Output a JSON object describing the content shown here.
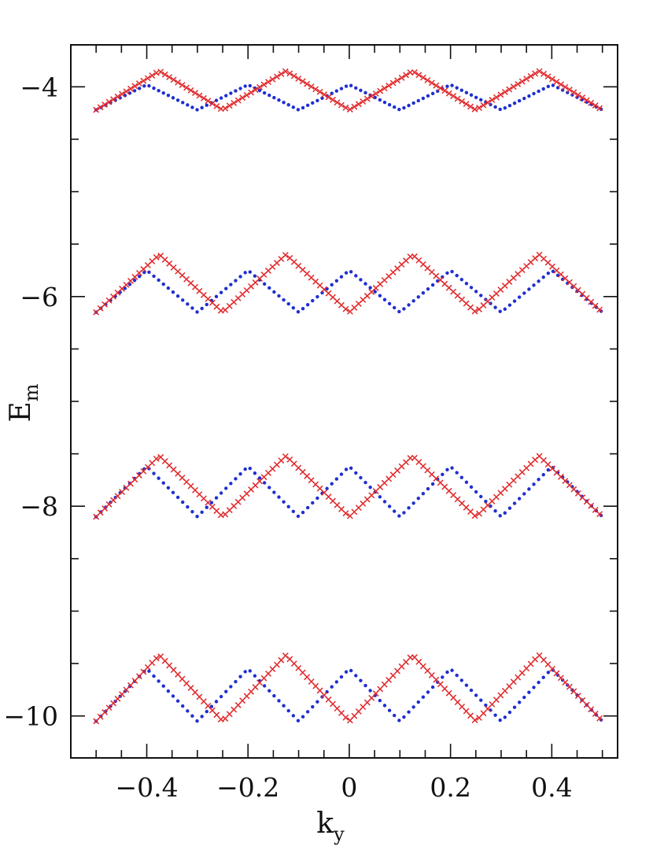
{
  "chart_data": {
    "type": "scatter",
    "title": "",
    "xlabel": "k",
    "xlabel_sub": "y",
    "ylabel": "E",
    "ylabel_sub": "m",
    "xlim": [
      -0.55,
      0.53
    ],
    "ylim": [
      -10.4,
      -3.6
    ],
    "x_ticks": [
      -0.4,
      -0.2,
      0,
      0.2,
      0.4
    ],
    "x_tick_labels": [
      "−0.4",
      "−0.2",
      "0",
      "0.2",
      "0.4"
    ],
    "x_minor_step": 0.05,
    "y_ticks": [
      -10,
      -8,
      -6,
      -4
    ],
    "y_tick_labels": [
      "−10",
      "−8",
      "−6",
      "−4"
    ],
    "y_minor_step": 0.5,
    "grid": false,
    "legend": "none",
    "colors": {
      "blue": "#1f2fd0",
      "red": "#e0282a"
    },
    "series": [
      {
        "marker": "dot",
        "color": "#1f2fd0",
        "bands": [
          {
            "k": [
              -0.5,
              -0.4,
              -0.3,
              -0.2,
              -0.1,
              0,
              0.1,
              0.2,
              0.3,
              0.4,
              0.5
            ],
            "E": [
              -4.22,
              -3.98,
              -4.22,
              -3.98,
              -4.22,
              -3.98,
              -4.22,
              -3.98,
              -4.22,
              -3.98,
              -4.22
            ]
          },
          {
            "k": [
              -0.5,
              -0.4,
              -0.3,
              -0.2,
              -0.1,
              0,
              0.1,
              0.2,
              0.3,
              0.4,
              0.5
            ],
            "E": [
              -6.15,
              -5.75,
              -6.15,
              -5.75,
              -6.15,
              -5.75,
              -6.15,
              -5.75,
              -6.15,
              -5.75,
              -6.15
            ]
          },
          {
            "k": [
              -0.5,
              -0.4,
              -0.3,
              -0.2,
              -0.1,
              0,
              0.1,
              0.2,
              0.3,
              0.4,
              0.5
            ],
            "E": [
              -8.1,
              -7.62,
              -8.1,
              -7.62,
              -8.1,
              -7.62,
              -8.1,
              -7.62,
              -8.1,
              -7.62,
              -8.1
            ]
          },
          {
            "k": [
              -0.5,
              -0.4,
              -0.3,
              -0.2,
              -0.1,
              0,
              0.1,
              0.2,
              0.3,
              0.4,
              0.5
            ],
            "E": [
              -10.05,
              -9.55,
              -10.05,
              -9.55,
              -10.05,
              -9.55,
              -10.05,
              -9.55,
              -10.05,
              -9.55,
              -10.05
            ]
          }
        ]
      },
      {
        "marker": "cross",
        "color": "#e0282a",
        "bands": [
          {
            "k": [
              -0.5,
              -0.375,
              -0.25,
              -0.125,
              0,
              0.125,
              0.25,
              0.375,
              0.5
            ],
            "E": [
              -4.22,
              -3.85,
              -4.22,
              -3.85,
              -4.22,
              -3.85,
              -4.22,
              -3.85,
              -4.22
            ]
          },
          {
            "k": [
              -0.5,
              -0.375,
              -0.25,
              -0.125,
              0,
              0.125,
              0.25,
              0.375,
              0.5
            ],
            "E": [
              -6.15,
              -5.6,
              -6.15,
              -5.6,
              -6.15,
              -5.6,
              -6.15,
              -5.6,
              -6.15
            ]
          },
          {
            "k": [
              -0.5,
              -0.375,
              -0.25,
              -0.125,
              0,
              0.125,
              0.25,
              0.375,
              0.5
            ],
            "E": [
              -8.1,
              -7.52,
              -8.1,
              -7.52,
              -8.1,
              -7.52,
              -8.1,
              -7.52,
              -8.1
            ]
          },
          {
            "k": [
              -0.5,
              -0.375,
              -0.25,
              -0.125,
              0,
              0.125,
              0.25,
              0.375,
              0.5
            ],
            "E": [
              -10.05,
              -9.42,
              -10.05,
              -9.42,
              -10.05,
              -9.42,
              -10.05,
              -9.42,
              -10.05
            ]
          }
        ]
      }
    ]
  }
}
